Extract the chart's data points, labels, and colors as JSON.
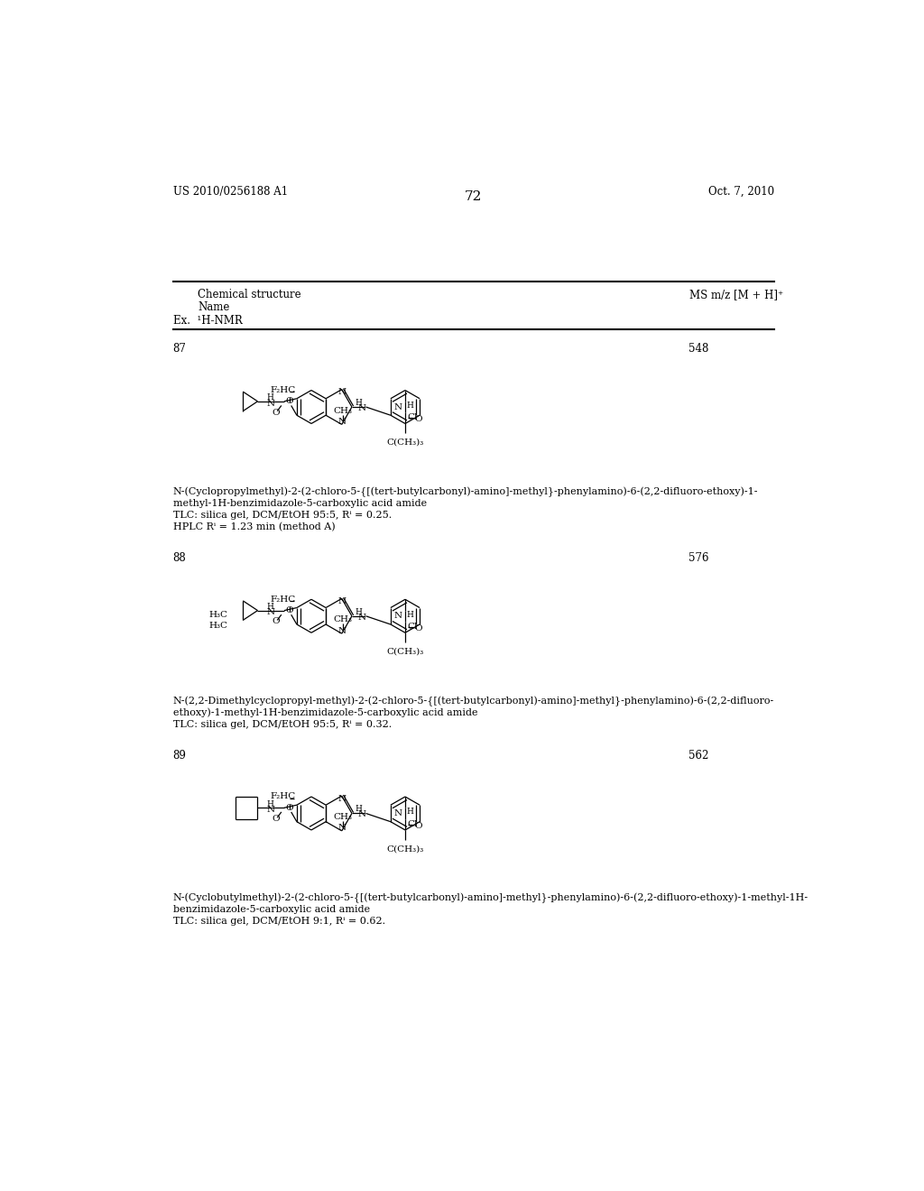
{
  "page_left": "US 2010/0256188 A1",
  "page_right": "Oct. 7, 2010",
  "page_number": "72",
  "bg_color": "#ffffff",
  "header_col1": "Chemical structure",
  "header_col2": "MS m/z [M + H]⁺",
  "header_row2": "Name",
  "header_row3": "Ex.  ¹H-NMR",
  "entries": [
    {
      "ex_num": "87",
      "ms": "548",
      "name_lines": [
        "N-(Cyclopropylmethyl)-2-(2-chloro-5-{[(tert-butylcarbonyl)-amino]-methyl}-phenylamino)-6-(2,2-difluoro-ethoxy)-1-",
        "methyl-1H-benzimidazole-5-carboxylic acid amide",
        "TLC: silica gel, DCM/EtOH 95:5, Rⁱ = 0.25.",
        "HPLC Rⁱ = 1.23 min (method A)"
      ]
    },
    {
      "ex_num": "88",
      "ms": "576",
      "name_lines": [
        "N-(2,2-Dimethylcyclopropyl-methyl)-2-(2-chloro-5-{[(tert-butylcarbonyl)-amino]-methyl}-phenylamino)-6-(2,2-difluoro-",
        "ethoxy)-1-methyl-1H-benzimidazole-5-carboxylic acid amide",
        "TLC: silica gel, DCM/EtOH 95:5, Rⁱ = 0.32."
      ]
    },
    {
      "ex_num": "89",
      "ms": "562",
      "name_lines": [
        "N-(Cyclobutylmethyl)-2-(2-chloro-5-{[(tert-butylcarbonyl)-amino]-methyl}-phenylamino)-6-(2,2-difluoro-ethoxy)-1-methyl-1H-",
        "benzimidazole-5-carboxylic acid amide",
        "TLC: silica gel, DCM/EtOH 9:1, Rⁱ = 0.62."
      ]
    }
  ]
}
